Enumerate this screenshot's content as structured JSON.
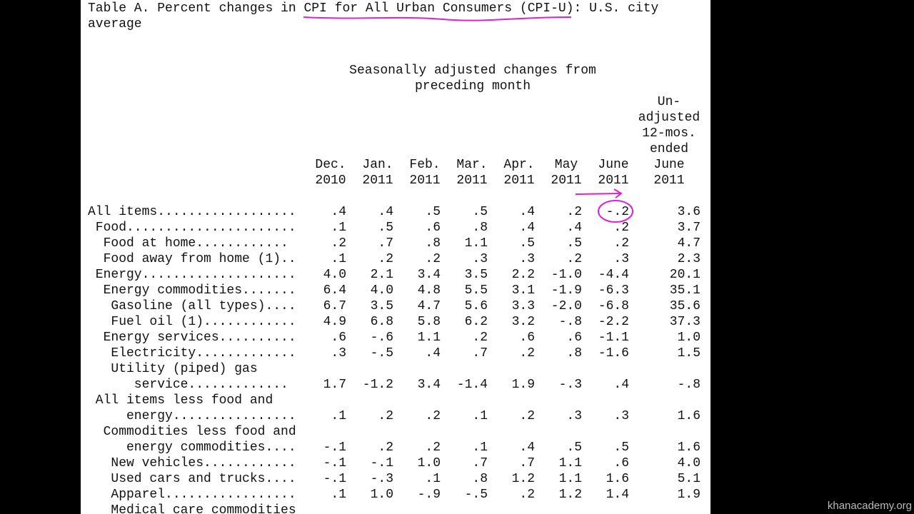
{
  "document": {
    "title_lines": [
      "Table A. Percent changes in CPI for All Urban Consumers (CPI-U): U.S. city",
      "average"
    ],
    "group_header": [
      "Seasonally adjusted changes from",
      "preceding month"
    ],
    "columns": [
      [
        "Dec.",
        "2010"
      ],
      [
        "Jan.",
        "2011"
      ],
      [
        "Feb.",
        "2011"
      ],
      [
        "Mar.",
        "2011"
      ],
      [
        "Apr.",
        "2011"
      ],
      [
        "May",
        "2011"
      ],
      [
        "June",
        "2011"
      ],
      [
        "Un-",
        "adjusted",
        "12-mos.",
        "ended",
        "June",
        "2011"
      ]
    ],
    "rows": [
      {
        "label": [
          "All items.................."
        ],
        "values": [
          ".4",
          ".4",
          ".5",
          ".5",
          ".4",
          ".2",
          "-.2",
          "3.6"
        ]
      },
      {
        "label": [
          " Food......................"
        ],
        "values": [
          ".1",
          ".5",
          ".6",
          ".8",
          ".4",
          ".4",
          ".2",
          "3.7"
        ]
      },
      {
        "label": [
          "  Food at home............"
        ],
        "values": [
          ".2",
          ".7",
          ".8",
          "1.1",
          ".5",
          ".5",
          ".2",
          "4.7"
        ]
      },
      {
        "label": [
          "  Food away from home (1).."
        ],
        "values": [
          ".1",
          ".2",
          ".2",
          ".3",
          ".3",
          ".2",
          ".3",
          "2.3"
        ]
      },
      {
        "label": [
          " Energy...................."
        ],
        "values": [
          "4.0",
          "2.1",
          "3.4",
          "3.5",
          "2.2",
          "-1.0",
          "-4.4",
          "20.1"
        ]
      },
      {
        "label": [
          "  Energy commodities......."
        ],
        "values": [
          "6.4",
          "4.0",
          "4.8",
          "5.5",
          "3.1",
          "-1.9",
          "-6.3",
          "35.1"
        ]
      },
      {
        "label": [
          "   Gasoline (all types)...."
        ],
        "values": [
          "6.7",
          "3.5",
          "4.7",
          "5.6",
          "3.3",
          "-2.0",
          "-6.8",
          "35.6"
        ]
      },
      {
        "label": [
          "   Fuel oil (1)............"
        ],
        "values": [
          "4.9",
          "6.8",
          "5.8",
          "6.2",
          "3.2",
          "-.8",
          "-2.2",
          "37.3"
        ]
      },
      {
        "label": [
          "  Energy services.........."
        ],
        "values": [
          ".6",
          "-.6",
          "1.1",
          ".2",
          ".6",
          ".6",
          "-1.1",
          "1.0"
        ]
      },
      {
        "label": [
          "   Electricity............."
        ],
        "values": [
          ".3",
          "-.5",
          ".4",
          ".7",
          ".2",
          ".8",
          "-1.6",
          "1.5"
        ]
      },
      {
        "label": [
          "   Utility (piped) gas",
          "      service............."
        ],
        "values": [
          "1.7",
          "-1.2",
          "3.4",
          "-1.4",
          "1.9",
          "-.3",
          ".4",
          "-.8"
        ]
      },
      {
        "label": [
          " All items less food and",
          "     energy................"
        ],
        "values": [
          ".1",
          ".2",
          ".2",
          ".1",
          ".2",
          ".3",
          ".3",
          "1.6"
        ]
      },
      {
        "label": [
          "  Commodities less food and",
          "     energy commodities...."
        ],
        "values": [
          "-.1",
          ".2",
          ".2",
          ".1",
          ".4",
          ".5",
          ".5",
          "1.6"
        ]
      },
      {
        "label": [
          "   New vehicles............"
        ],
        "values": [
          "-.1",
          "-.1",
          "1.0",
          ".7",
          ".7",
          "1.1",
          ".6",
          "4.0"
        ]
      },
      {
        "label": [
          "   Used cars and trucks...."
        ],
        "values": [
          "-.1",
          "-.3",
          ".1",
          ".8",
          "1.2",
          "1.1",
          "1.6",
          "5.1"
        ]
      },
      {
        "label": [
          "   Apparel................."
        ],
        "values": [
          ".1",
          "1.0",
          "-.9",
          "-.5",
          ".2",
          "1.2",
          "1.4",
          "1.9"
        ]
      },
      {
        "label": [
          "   Medical care commodities"
        ],
        "values": []
      }
    ],
    "watermark": "khanacademy.org"
  }
}
